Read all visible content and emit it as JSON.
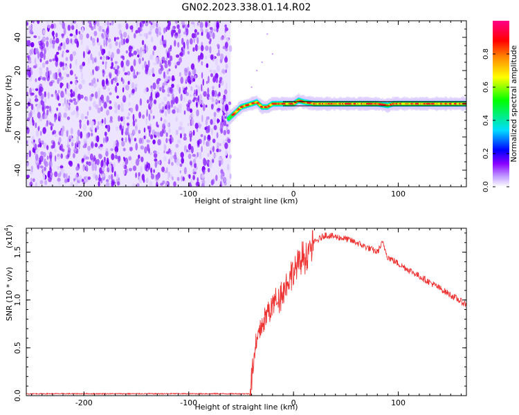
{
  "title": "GN02.2023.338.01.14.R02",
  "chart_data": [
    {
      "type": "heatmap",
      "xlabel": "Height of straight line (km)",
      "ylabel": "Frequency (Hz)",
      "xlim": [
        -255,
        165
      ],
      "ylim": [
        -50,
        50
      ],
      "xticks": [
        -200,
        -100,
        0,
        100
      ],
      "yticks": [
        -40,
        -20,
        0,
        20,
        40
      ],
      "noise_region_x": [
        -255,
        -60
      ],
      "signal_track": {
        "x": [
          -62,
          -55,
          -50,
          -45,
          -40,
          -35,
          -30,
          -25,
          -20,
          -10,
          0,
          5,
          10,
          20,
          40,
          60,
          80,
          90,
          95,
          100,
          120,
          140,
          165
        ],
        "freq": [
          -9,
          -5,
          -2,
          -1,
          0,
          1,
          -2,
          -2,
          0,
          0,
          0,
          2,
          1,
          0,
          0,
          0,
          0,
          -1,
          0,
          0,
          0,
          0,
          0
        ]
      },
      "colorbar": {
        "label": "Normalized spectral amplitude",
        "range": [
          0.0,
          1.0
        ],
        "ticks": [
          0.0,
          0.2,
          0.4,
          0.6,
          0.8
        ],
        "colors": [
          "#ffffff",
          "#8800ff",
          "#0000ff",
          "#00ddff",
          "#00ff00",
          "#ffff00",
          "#ff8800",
          "#ff0000",
          "#ff0088"
        ]
      }
    },
    {
      "type": "line",
      "xlabel": "Height of straight line (km)",
      "ylabel": "SNR (10 * v/v)",
      "y_multiplier_label": "(x10",
      "y_multiplier_exp": "4",
      "xlim": [
        -255,
        165
      ],
      "ylim": [
        0,
        1.75
      ],
      "xticks": [
        -200,
        -100,
        0,
        100
      ],
      "yticks": [
        0.0,
        0.5,
        1.0,
        1.5
      ],
      "ytick_labels": [
        "0.0",
        "0.5",
        "1.0",
        "1.5"
      ],
      "series": [
        {
          "color": "#ee3333",
          "x": [
            -255,
            -42,
            -38,
            -35,
            -30,
            -25,
            -20,
            -10,
            0,
            10,
            20,
            30,
            40,
            50,
            60,
            70,
            80,
            85,
            90,
            100,
            120,
            140,
            165
          ],
          "y": [
            0.02,
            0.02,
            0.35,
            0.55,
            0.75,
            0.85,
            0.95,
            1.1,
            1.3,
            1.45,
            1.6,
            1.68,
            1.66,
            1.64,
            1.6,
            1.55,
            1.5,
            1.6,
            1.45,
            1.38,
            1.25,
            1.12,
            0.95
          ]
        }
      ]
    }
  ]
}
